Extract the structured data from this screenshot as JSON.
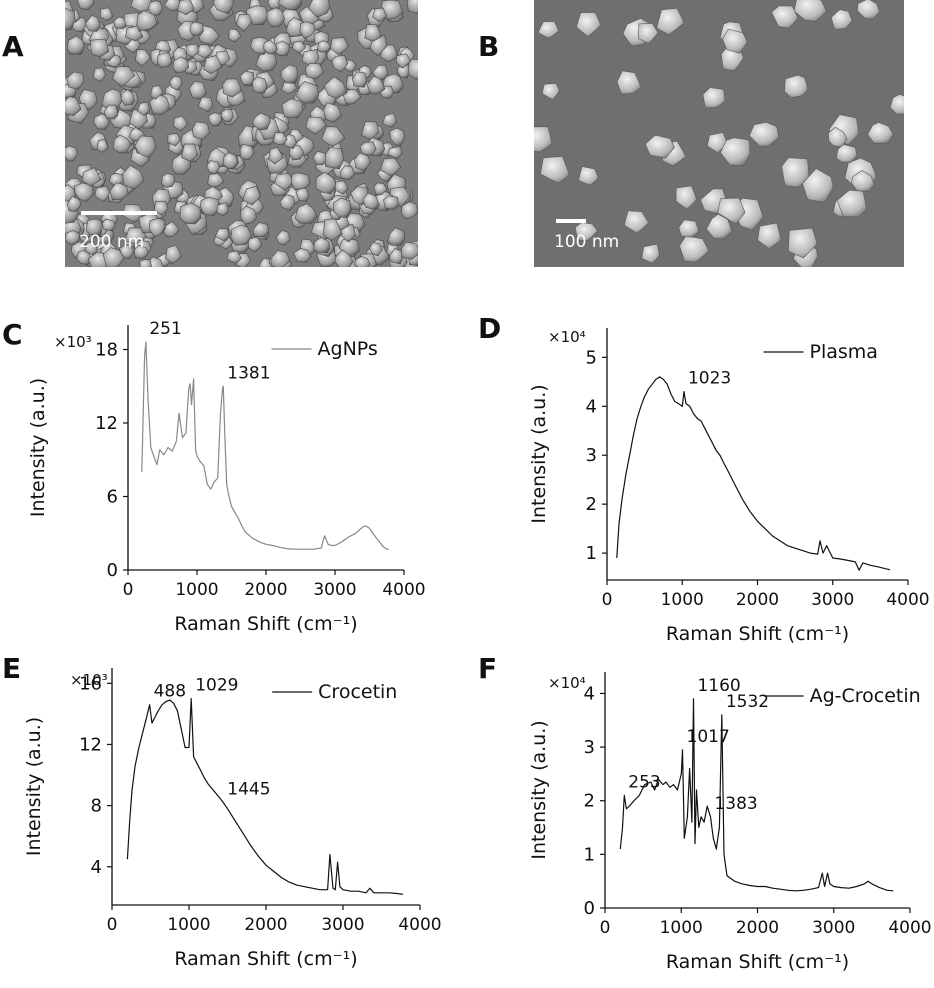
{
  "panels": {
    "A": {
      "letter": "A",
      "scale_label": "200 nm"
    },
    "B": {
      "letter": "B",
      "scale_label": "100 nm"
    },
    "C": {
      "letter": "C"
    },
    "D": {
      "letter": "D"
    },
    "E": {
      "letter": "E"
    },
    "F": {
      "letter": "F"
    }
  },
  "chart_data": [
    {
      "id": "C",
      "type": "line",
      "series": [
        {
          "name": "AgNPs",
          "color": "#888888",
          "x": [
            200,
            240,
            260,
            290,
            330,
            380,
            420,
            460,
            520,
            580,
            640,
            700,
            740,
            760,
            790,
            840,
            880,
            900,
            920,
            950,
            980,
            1000,
            1040,
            1100,
            1150,
            1200,
            1250,
            1300,
            1340,
            1370,
            1381,
            1400,
            1430,
            1460,
            1500,
            1550,
            1600,
            1650,
            1700,
            1800,
            1900,
            2000,
            2100,
            2200,
            2300,
            2400,
            2500,
            2600,
            2700,
            2800,
            2850,
            2900,
            2950,
            3000,
            3100,
            3200,
            3300,
            3400,
            3450,
            3500,
            3600,
            3700,
            3750,
            3780
          ],
          "y": [
            8.0,
            17.5,
            18.6,
            14,
            10,
            9.2,
            8.6,
            9.8,
            9.4,
            10.0,
            9.7,
            10.5,
            12.8,
            12.0,
            10.8,
            11.2,
            14.8,
            15.2,
            13.5,
            15.6,
            9.8,
            9.3,
            8.9,
            8.5,
            7.0,
            6.6,
            7.2,
            7.5,
            12.8,
            14.8,
            15.0,
            11.5,
            7.0,
            6.1,
            5.2,
            4.7,
            4.2,
            3.6,
            3.1,
            2.6,
            2.3,
            2.1,
            2.0,
            1.85,
            1.75,
            1.7,
            1.7,
            1.7,
            1.7,
            1.8,
            2.8,
            2.1,
            2.0,
            2.0,
            2.3,
            2.7,
            3.0,
            3.5,
            3.6,
            3.4,
            2.6,
            1.9,
            1.7,
            1.7
          ]
        }
      ],
      "xlabel": "Raman Shift (cm⁻¹)",
      "ylabel": "Intensity (a.u.)",
      "multiplier": "×10³",
      "xlim": [
        0,
        4000
      ],
      "ylim": [
        0,
        20
      ],
      "xticks": [
        0,
        1000,
        2000,
        3000,
        4000
      ],
      "yticks": [
        0,
        6,
        12,
        18
      ],
      "annotations": [
        {
          "text": "251",
          "x": 251,
          "y": 18.6,
          "color": "#111111"
        },
        {
          "text": "1381",
          "x": 1381,
          "y": 15.0,
          "color": "#111111"
        }
      ],
      "legend": "top-right"
    },
    {
      "id": "D",
      "type": "line",
      "series": [
        {
          "name": "Plasma",
          "color": "#111111",
          "x": [
            130,
            160,
            200,
            250,
            300,
            350,
            400,
            450,
            500,
            550,
            600,
            650,
            700,
            750,
            800,
            850,
            900,
            950,
            1000,
            1023,
            1050,
            1100,
            1150,
            1200,
            1250,
            1300,
            1350,
            1400,
            1450,
            1500,
            1550,
            1600,
            1700,
            1800,
            1900,
            2000,
            2100,
            2200,
            2300,
            2400,
            2500,
            2600,
            2700,
            2800,
            2830,
            2870,
            2920,
            2950,
            3000,
            3100,
            3200,
            3300,
            3350,
            3400,
            3500,
            3600,
            3700,
            3760
          ],
          "y": [
            0.9,
            1.6,
            2.1,
            2.6,
            3.0,
            3.4,
            3.75,
            4.0,
            4.2,
            4.35,
            4.45,
            4.55,
            4.6,
            4.55,
            4.45,
            4.25,
            4.1,
            4.05,
            4.0,
            4.3,
            4.05,
            4.0,
            3.85,
            3.75,
            3.7,
            3.55,
            3.4,
            3.25,
            3.1,
            3.0,
            2.85,
            2.7,
            2.4,
            2.1,
            1.85,
            1.65,
            1.5,
            1.35,
            1.25,
            1.15,
            1.1,
            1.05,
            1.0,
            0.98,
            1.25,
            1.0,
            1.15,
            1.05,
            0.9,
            0.88,
            0.85,
            0.82,
            0.65,
            0.8,
            0.75,
            0.72,
            0.68,
            0.66
          ]
        }
      ],
      "xlabel": "Raman Shift (cm⁻¹)",
      "ylabel": "Intensity (a.u.)",
      "multiplier": "×10⁴",
      "xlim": [
        0,
        4000
      ],
      "ylim": [
        0.45,
        5.6
      ],
      "xticks": [
        0,
        1000,
        2000,
        3000,
        4000
      ],
      "yticks": [
        1,
        2,
        3,
        4,
        5
      ],
      "annotations": [
        {
          "text": "1023",
          "x": 1023,
          "y": 4.3,
          "color": "#111111"
        }
      ],
      "legend": "top-right"
    },
    {
      "id": "E",
      "type": "line",
      "series": [
        {
          "name": "Crocetin",
          "color": "#111111",
          "x": [
            200,
            230,
            260,
            300,
            350,
            400,
            450,
            488,
            520,
            560,
            600,
            650,
            700,
            750,
            800,
            850,
            900,
            950,
            1000,
            1029,
            1060,
            1100,
            1150,
            1200,
            1250,
            1300,
            1350,
            1400,
            1445,
            1500,
            1600,
            1700,
            1800,
            1900,
            2000,
            2100,
            2200,
            2300,
            2400,
            2500,
            2600,
            2700,
            2800,
            2830,
            2870,
            2900,
            2930,
            2960,
            3000,
            3100,
            3200,
            3300,
            3350,
            3400,
            3500,
            3600,
            3700,
            3780
          ],
          "y": [
            4.5,
            7.0,
            9.0,
            10.6,
            11.8,
            12.8,
            13.8,
            14.6,
            13.4,
            13.8,
            14.2,
            14.6,
            14.8,
            14.9,
            14.7,
            14.2,
            13.0,
            11.8,
            11.8,
            15.0,
            11.2,
            10.8,
            10.3,
            9.8,
            9.4,
            9.1,
            8.8,
            8.5,
            8.2,
            7.8,
            7.0,
            6.2,
            5.4,
            4.7,
            4.1,
            3.7,
            3.3,
            3.0,
            2.8,
            2.7,
            2.6,
            2.5,
            2.5,
            4.8,
            2.6,
            2.5,
            4.3,
            2.7,
            2.5,
            2.4,
            2.4,
            2.3,
            2.6,
            2.3,
            2.3,
            2.3,
            2.25,
            2.2
          ]
        }
      ],
      "xlabel": "Raman Shift (cm⁻¹)",
      "ylabel": "Intensity (a.u.)",
      "multiplier": "×10³",
      "xlim": [
        0,
        4000
      ],
      "ylim": [
        1.5,
        17
      ],
      "xticks": [
        0,
        1000,
        2000,
        3000,
        4000
      ],
      "yticks": [
        4,
        8,
        12,
        16
      ],
      "annotations": [
        {
          "text": "488",
          "x": 488,
          "y": 14.6,
          "color": "#111111"
        },
        {
          "text": "1029",
          "x": 1029,
          "y": 15.0,
          "color": "#111111"
        },
        {
          "text": "1445",
          "x": 1445,
          "y": 8.2,
          "color": "#111111"
        }
      ],
      "legend": "top-right"
    },
    {
      "id": "F",
      "type": "line",
      "series": [
        {
          "name": "Ag-Crocetin",
          "color": "#111111",
          "x": [
            200,
            230,
            253,
            280,
            320,
            380,
            450,
            520,
            600,
            650,
            700,
            760,
            800,
            850,
            900,
            950,
            1000,
            1017,
            1040,
            1080,
            1110,
            1140,
            1160,
            1180,
            1200,
            1230,
            1260,
            1300,
            1340,
            1383,
            1420,
            1460,
            1500,
            1532,
            1560,
            1600,
            1650,
            1700,
            1800,
            1900,
            2000,
            2100,
            2200,
            2300,
            2400,
            2500,
            2600,
            2700,
            2800,
            2850,
            2880,
            2920,
            2950,
            3000,
            3100,
            3200,
            3300,
            3400,
            3450,
            3500,
            3600,
            3700,
            3780
          ],
          "y": [
            1.1,
            1.5,
            2.1,
            1.85,
            1.9,
            2.0,
            2.1,
            2.3,
            2.35,
            2.2,
            2.4,
            2.3,
            2.35,
            2.25,
            2.3,
            2.2,
            2.5,
            2.95,
            1.3,
            1.7,
            2.6,
            1.6,
            3.9,
            1.2,
            2.2,
            1.5,
            1.7,
            1.6,
            1.9,
            1.7,
            1.3,
            1.1,
            1.5,
            3.6,
            1.0,
            0.6,
            0.55,
            0.5,
            0.45,
            0.42,
            0.4,
            0.4,
            0.37,
            0.35,
            0.33,
            0.32,
            0.33,
            0.35,
            0.38,
            0.65,
            0.4,
            0.65,
            0.45,
            0.4,
            0.38,
            0.37,
            0.4,
            0.45,
            0.5,
            0.45,
            0.38,
            0.33,
            0.32
          ]
        }
      ],
      "xlabel": "Raman Shift (cm⁻¹)",
      "ylabel": "Intensity (a.u.)",
      "multiplier": "×10⁴",
      "xlim": [
        0,
        4000
      ],
      "ylim": [
        0,
        4.4
      ],
      "xticks": [
        0,
        1000,
        2000,
        3000,
        4000
      ],
      "yticks": [
        0,
        1,
        2,
        3,
        4
      ],
      "annotations": [
        {
          "text": "253",
          "x": 253,
          "y": 2.1,
          "color": "#111111"
        },
        {
          "text": "1017",
          "x": 1017,
          "y": 2.95,
          "color": "#111111"
        },
        {
          "text": "1160",
          "x": 1160,
          "y": 3.9,
          "color": "#e8201c"
        },
        {
          "text": "1532",
          "x": 1532,
          "y": 3.6,
          "color": "#e8201c"
        },
        {
          "text": "1383",
          "x": 1383,
          "y": 1.7,
          "color": "#111111"
        }
      ],
      "legend": "top-right"
    }
  ]
}
